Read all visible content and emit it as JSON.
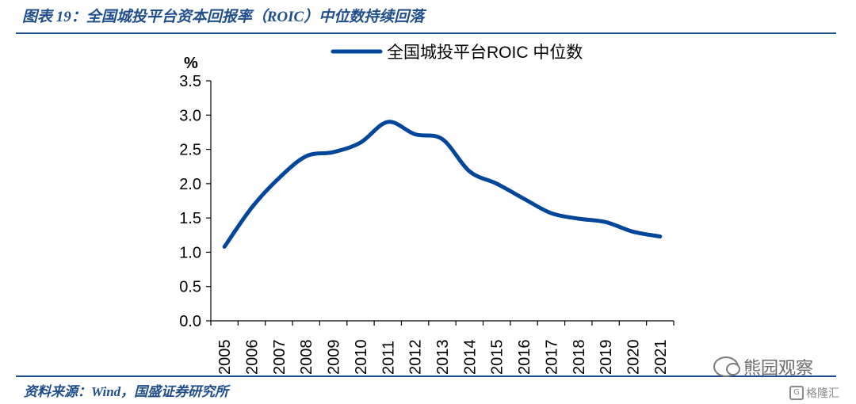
{
  "header": {
    "title": "图表 19：全国城投平台资本回报率（ROIC）中位数持续回落"
  },
  "footer": {
    "source": "资料来源：Wind，国盛证券研究所"
  },
  "watermarks": {
    "wechat": "熊园观察",
    "gelonghui": "格隆汇"
  },
  "colors": {
    "line": "#00469a",
    "brand_blue": "#1f4e8c"
  },
  "chart_data": {
    "type": "line",
    "ylabel": "%",
    "ylim": [
      0,
      3.5
    ],
    "yticks": [
      "0.0",
      "0.5",
      "1.0",
      "1.5",
      "2.0",
      "2.5",
      "3.0",
      "3.5"
    ],
    "categories": [
      "2005",
      "2006",
      "2007",
      "2008",
      "2009",
      "2010",
      "2011",
      "2012",
      "2013",
      "2014",
      "2015",
      "2016",
      "2017",
      "2018",
      "2019",
      "2020",
      "2021"
    ],
    "series": [
      {
        "name": "全国城投平台ROIC 中位数",
        "values": [
          1.08,
          1.65,
          2.08,
          2.4,
          2.46,
          2.6,
          2.9,
          2.72,
          2.65,
          2.18,
          2.0,
          1.78,
          1.57,
          1.49,
          1.44,
          1.3,
          1.23
        ]
      }
    ],
    "legend": "top-center",
    "grid": false
  }
}
